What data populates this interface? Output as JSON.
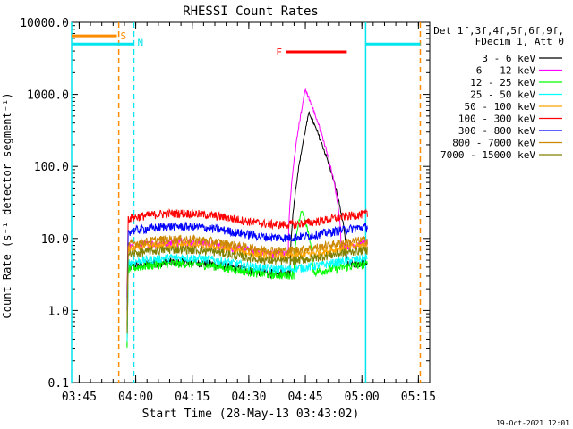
{
  "chart_data": {
    "type": "line",
    "title": "RHESSI Count Rates",
    "xlabel": "Start Time (28-May-13 03:43:02)",
    "ylabel": "Count Rate (s⁻¹ detector segment⁻¹)",
    "yscale": "log",
    "ylim": [
      0.1,
      10000
    ],
    "xlim_minutes": [
      0,
      95
    ],
    "x_ticks": [
      {
        "label": "03:45",
        "min": 2
      },
      {
        "label": "04:00",
        "min": 17
      },
      {
        "label": "04:15",
        "min": 32
      },
      {
        "label": "04:30",
        "min": 47
      },
      {
        "label": "04:45",
        "min": 62
      },
      {
        "label": "05:00",
        "min": 77
      },
      {
        "label": "05:15",
        "min": 92
      }
    ],
    "y_ticks": [
      {
        "label": "0.1",
        "v": 0.1
      },
      {
        "label": "1.0",
        "v": 1
      },
      {
        "label": "10.0",
        "v": 10
      },
      {
        "label": "100.0",
        "v": 100
      },
      {
        "label": "1000.0",
        "v": 1000
      },
      {
        "label": "10000.0",
        "v": 10000
      }
    ],
    "legend_header": [
      "Det 1f,3f,4f,5f,6f,9f,",
      "FDecim 1, Att 0"
    ],
    "series": [
      {
        "name": "3 - 6 keV",
        "color": "#000000",
        "base": 4.0,
        "peak": 560,
        "peak_start": 58,
        "peak_time": 63,
        "peak_end": 73
      },
      {
        "name": "6 - 12 keV",
        "color": "#ff00ff",
        "base": 7.5,
        "peak": 1180,
        "peak_start": 57.5,
        "peak_time": 62,
        "peak_end": 71.5
      },
      {
        "name": "12 - 25 keV",
        "color": "#00ff00",
        "base": 3.8,
        "peak": 25,
        "peak_start": 59,
        "peak_time": 61,
        "peak_end": 64
      },
      {
        "name": "25 - 50 keV",
        "color": "#00ffff",
        "base": 4.6
      },
      {
        "name": "50 - 100 keV",
        "color": "#ffa500",
        "base": 7.0
      },
      {
        "name": "100 - 300 keV",
        "color": "#ff0000",
        "base": 19.0
      },
      {
        "name": "300 - 800 keV",
        "color": "#0000ff",
        "base": 12.5
      },
      {
        "name": "800 - 7000 keV",
        "color": "#cc8800",
        "base": 8.3
      },
      {
        "name": "7000 - 15000 keV",
        "color": "#808000",
        "base": 6.0
      }
    ],
    "data_range_minutes": [
      15,
      78.5
    ],
    "markers": [
      {
        "label": "S",
        "color": "#ff8c00",
        "start": 0,
        "end": 12,
        "level": 6500
      },
      {
        "label": "N",
        "color": "#00e5ee",
        "start": 0,
        "end": 16.5,
        "level": 5000
      },
      {
        "label": "F",
        "color": "#ff0000",
        "start": 57,
        "end": 73,
        "level": 3900
      },
      {
        "label": "",
        "color": "#00e5ee",
        "start": 78,
        "end": 92.5,
        "level": 5000
      }
    ],
    "vlines": [
      {
        "min": 0,
        "color": "#00e5ee",
        "dash": false
      },
      {
        "min": 12.5,
        "color": "#ff8c00",
        "dash": true
      },
      {
        "min": 16.5,
        "color": "#00e5ee",
        "dash": true
      },
      {
        "min": 78,
        "color": "#00e5ee",
        "dash": false
      },
      {
        "min": 92.5,
        "color": "#ff8c00",
        "dash": true
      }
    ],
    "timestamp": "19-Oct-2021 12:01"
  }
}
